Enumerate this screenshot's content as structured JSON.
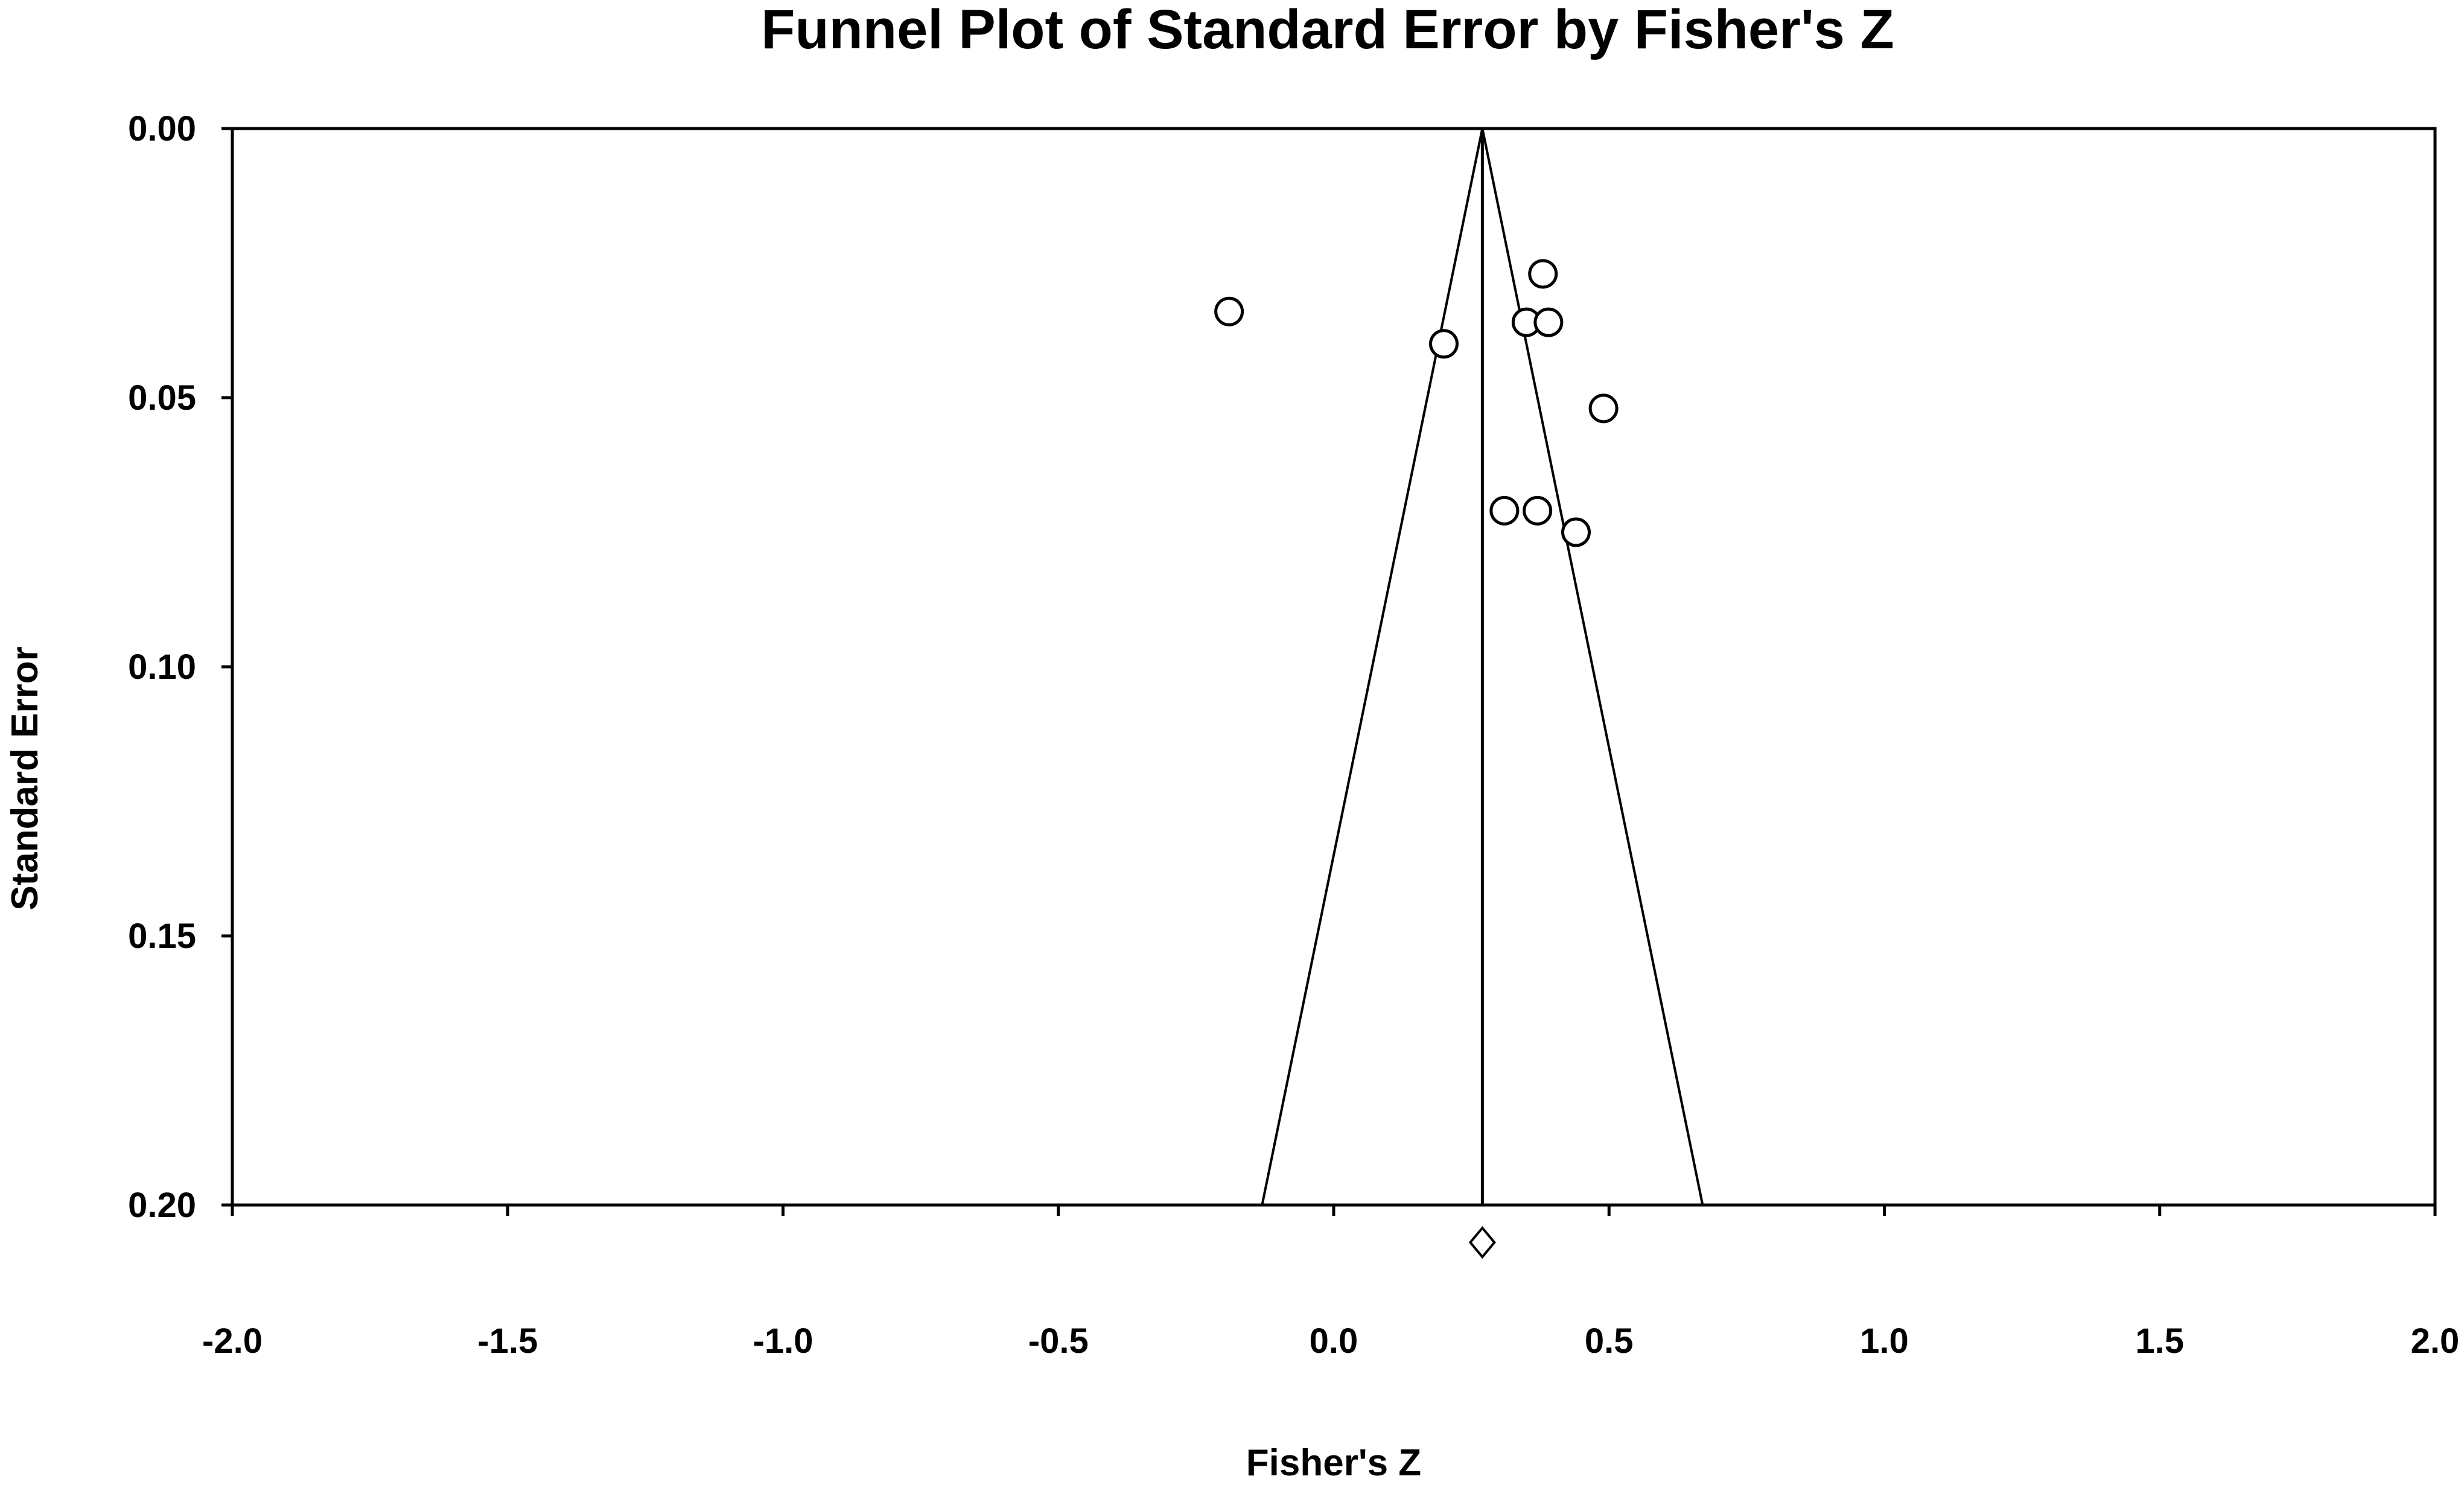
{
  "chart_data": {
    "type": "scatter",
    "title": "Funnel Plot of Standard Error by Fisher's Z",
    "xlabel": "Fisher's Z",
    "ylabel": "Standard Error",
    "xlim": [
      -2.0,
      2.0
    ],
    "ylim": [
      0.0,
      0.2
    ],
    "y_inverted": true,
    "grid": false,
    "x_ticks": [
      "-2.0",
      "-1.5",
      "-1.0",
      "-0.5",
      "0.0",
      "0.5",
      "1.0",
      "1.5",
      "2.0"
    ],
    "y_ticks": [
      "0.00",
      "0.05",
      "0.10",
      "0.15",
      "0.20"
    ],
    "summary_effect": 0.27,
    "funnel_limits_at_max_se": [
      -0.13,
      0.67
    ],
    "points": [
      {
        "x": 0.38,
        "y": 0.027
      },
      {
        "x": -0.19,
        "y": 0.034
      },
      {
        "x": 0.35,
        "y": 0.036
      },
      {
        "x": 0.39,
        "y": 0.036
      },
      {
        "x": 0.2,
        "y": 0.04
      },
      {
        "x": 0.49,
        "y": 0.052
      },
      {
        "x": 0.31,
        "y": 0.071
      },
      {
        "x": 0.37,
        "y": 0.071
      },
      {
        "x": 0.44,
        "y": 0.075
      }
    ],
    "colors": {
      "marker_fill": "#ffffff",
      "marker_stroke": "#000000",
      "line": "#000000"
    }
  }
}
